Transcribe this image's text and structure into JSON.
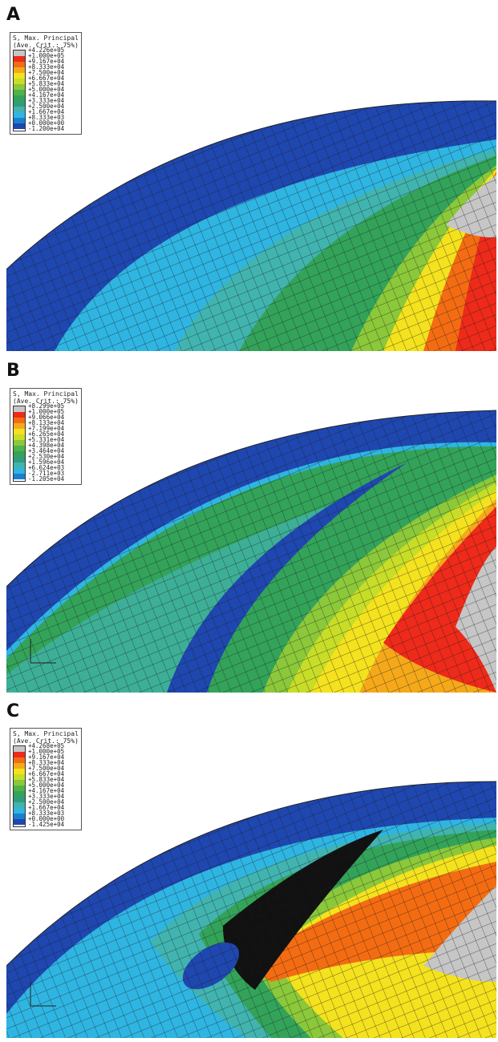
{
  "colors": {
    "scale": [
      "#c6c6c6",
      "#ee2a1a",
      "#f46c12",
      "#f5a91a",
      "#f4e21e",
      "#c7dd28",
      "#8bc83a",
      "#4fb348",
      "#33a35a",
      "#2f9d7a",
      "#41b4b0",
      "#2fb5e2",
      "#1b7fd0",
      "#1f47b0",
      "#0d1a55"
    ]
  },
  "panels": [
    {
      "id": "A",
      "label": "A",
      "legend": {
        "title": "S, Max. Principal",
        "subtitle": "(Ave. Crit.: 75%)",
        "values": [
          "+4.226e+05",
          "+1.000e+05",
          "+9.167e+04",
          "+8.333e+04",
          "+7.500e+04",
          "+6.667e+04",
          "+5.833e+04",
          "+5.000e+04",
          "+4.167e+04",
          "+3.333e+04",
          "+2.500e+04",
          "+1.667e+04",
          "+8.333e+03",
          "+0.000e+00",
          "-1.200e+04"
        ]
      }
    },
    {
      "id": "B",
      "label": "B",
      "legend": {
        "title": "S, Max. Principal",
        "subtitle": "(Ave. Crit.: 75%)",
        "values": [
          "+8.299e+05",
          "+1.000e+05",
          "+9.066e+04",
          "+8.133e+04",
          "+7.199e+04",
          "+6.265e+04",
          "+5.331e+04",
          "+4.398e+04",
          "+3.464e+04",
          "+2.530e+04",
          "+1.596e+04",
          "+6.624e+03",
          "-2.711e+03",
          "-1.205e+04"
        ]
      }
    },
    {
      "id": "C",
      "label": "C",
      "legend": {
        "title": "S, Max. Principal",
        "subtitle": "(Ave. Crit.: 75%)",
        "values": [
          "+4.268e+05",
          "+1.000e+05",
          "+9.167e+04",
          "+8.333e+04",
          "+7.500e+04",
          "+6.667e+04",
          "+5.833e+04",
          "+5.000e+04",
          "+4.167e+04",
          "+3.333e+04",
          "+2.500e+04",
          "+1.667e+04",
          "+8.333e+03",
          "+0.000e+00",
          "-1.425e+04"
        ]
      }
    }
  ]
}
